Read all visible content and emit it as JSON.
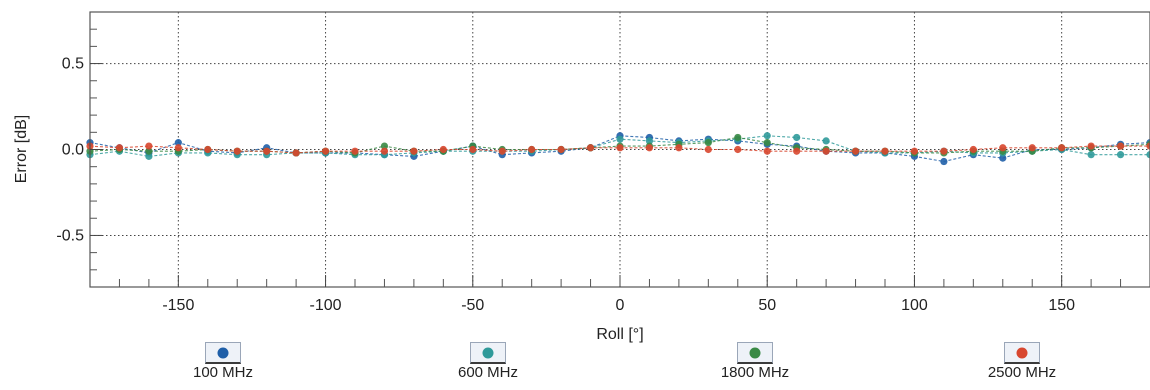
{
  "chart_data": {
    "type": "line",
    "title": "",
    "xlabel": "Roll [°]",
    "ylabel": "Error [dB]",
    "xlim": [
      -180,
      180
    ],
    "ylim": [
      -0.8,
      0.8
    ],
    "xticks": [
      -150,
      -100,
      -50,
      0,
      50,
      100,
      150
    ],
    "yticks": [
      0.5,
      0.0,
      -0.5
    ],
    "ytick_labels": [
      "0.5",
      "0.0",
      "-0.5"
    ],
    "grid": true,
    "legend_position": "bottom",
    "x": [
      -180,
      -170,
      -160,
      -150,
      -140,
      -130,
      -120,
      -110,
      -100,
      -90,
      -80,
      -70,
      -60,
      -50,
      -40,
      -30,
      -20,
      -10,
      0,
      10,
      20,
      30,
      40,
      50,
      60,
      70,
      80,
      90,
      100,
      110,
      120,
      130,
      140,
      150,
      160,
      170,
      180
    ],
    "series": [
      {
        "name": "100 MHz",
        "color": "#1f5fa8",
        "values": [
          0.04,
          0.01,
          -0.02,
          0.04,
          -0.01,
          -0.02,
          0.01,
          -0.02,
          -0.02,
          -0.02,
          -0.03,
          -0.04,
          -0.01,
          0.02,
          -0.03,
          -0.02,
          -0.01,
          0.01,
          0.08,
          0.07,
          0.05,
          0.06,
          0.05,
          0.03,
          0.02,
          -0.01,
          -0.02,
          -0.02,
          -0.04,
          -0.07,
          -0.03,
          -0.05,
          0.0,
          0.0,
          0.01,
          0.03,
          0.04
        ]
      },
      {
        "name": "600 MHz",
        "color": "#2f9a9a",
        "values": [
          -0.03,
          -0.01,
          -0.04,
          -0.02,
          -0.02,
          -0.03,
          -0.03,
          -0.02,
          -0.02,
          -0.03,
          -0.03,
          -0.02,
          -0.01,
          -0.01,
          -0.01,
          -0.01,
          0.0,
          0.01,
          0.06,
          0.05,
          0.04,
          0.05,
          0.06,
          0.08,
          0.07,
          0.05,
          -0.01,
          -0.02,
          -0.02,
          -0.01,
          -0.02,
          -0.02,
          -0.01,
          0.0,
          -0.03,
          -0.03,
          -0.03
        ]
      },
      {
        "name": "1800 MHz",
        "color": "#3a8a45",
        "values": [
          -0.01,
          0.0,
          -0.01,
          -0.01,
          0.0,
          -0.01,
          -0.01,
          -0.02,
          -0.01,
          -0.02,
          0.02,
          -0.01,
          -0.01,
          0.02,
          0.0,
          0.0,
          0.0,
          0.01,
          0.02,
          0.02,
          0.03,
          0.04,
          0.07,
          0.04,
          0.01,
          0.0,
          -0.01,
          -0.01,
          -0.02,
          -0.02,
          -0.01,
          -0.01,
          -0.01,
          0.01,
          0.01,
          0.02,
          0.03
        ]
      },
      {
        "name": "2500 MHz",
        "color": "#d8472f",
        "values": [
          0.02,
          0.01,
          0.02,
          0.01,
          0.0,
          -0.01,
          -0.01,
          -0.02,
          -0.01,
          -0.01,
          -0.01,
          -0.01,
          0.0,
          0.0,
          -0.01,
          0.0,
          0.0,
          0.01,
          0.01,
          0.01,
          0.01,
          0.0,
          0.0,
          -0.01,
          -0.01,
          -0.01,
          -0.01,
          -0.01,
          -0.01,
          -0.01,
          0.0,
          0.01,
          0.01,
          0.01,
          0.02,
          0.02,
          0.02
        ]
      }
    ]
  }
}
